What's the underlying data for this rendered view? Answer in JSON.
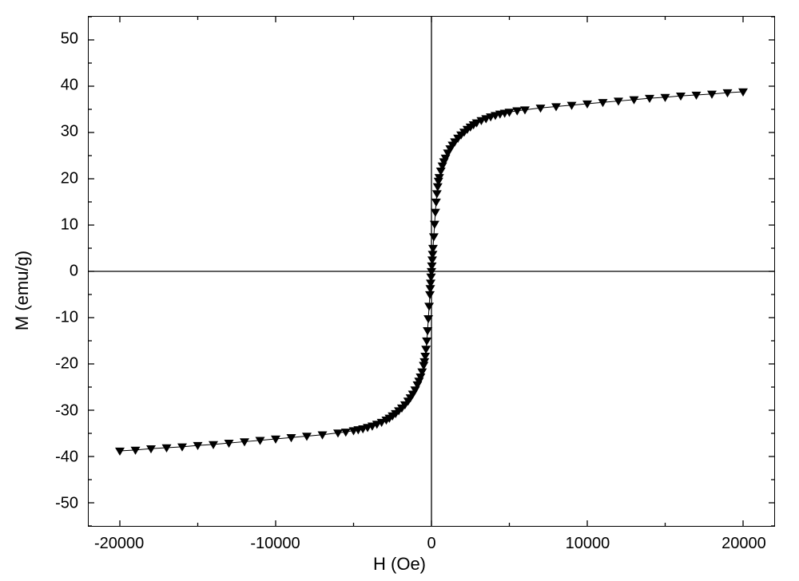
{
  "chart": {
    "type": "scatter-line",
    "xlabel": "H (Oe)",
    "ylabel": "M (emu/g)",
    "xlim": [
      -22000,
      22000
    ],
    "ylim": [
      -55,
      55
    ],
    "xtick_positions": [
      -20000,
      -10000,
      0,
      10000,
      20000
    ],
    "xtick_labels": [
      "-20000",
      "-10000",
      "0",
      "10000",
      "20000"
    ],
    "x_minor_ticks": [
      -15000,
      -5000,
      5000,
      15000
    ],
    "ytick_positions": [
      -50,
      -40,
      -30,
      -20,
      -10,
      0,
      10,
      20,
      30,
      40,
      50
    ],
    "ytick_labels": [
      "-50",
      "-40",
      "-30",
      "-20",
      "-10",
      "0",
      "10",
      "20",
      "30",
      "40",
      "50"
    ],
    "y_minor_ticks": [
      -55,
      -45,
      -35,
      -25,
      -15,
      -5,
      5,
      15,
      25,
      35,
      45,
      55
    ],
    "zero_line_color": "#000000",
    "axis_color": "#000000",
    "background_color": "#ffffff",
    "label_fontsize": 22,
    "tick_fontsize": 20,
    "marker": "triangle-down",
    "marker_size": 6,
    "marker_color": "#000000",
    "line_color": "#000000",
    "line_width": 1,
    "tick_length_major": 7,
    "tick_length_minor": 4,
    "data": [
      [
        -20000,
        -38.8
      ],
      [
        -19000,
        -38.6
      ],
      [
        -18000,
        -38.3
      ],
      [
        -17000,
        -38.1
      ],
      [
        -16000,
        -37.9
      ],
      [
        -15000,
        -37.6
      ],
      [
        -14000,
        -37.4
      ],
      [
        -13000,
        -37.1
      ],
      [
        -12000,
        -36.8
      ],
      [
        -11000,
        -36.5
      ],
      [
        -10000,
        -36.2
      ],
      [
        -9000,
        -35.9
      ],
      [
        -8000,
        -35.6
      ],
      [
        -7000,
        -35.3
      ],
      [
        -6000,
        -34.9
      ],
      [
        -5500,
        -34.7
      ],
      [
        -5000,
        -34.4
      ],
      [
        -4700,
        -34.2
      ],
      [
        -4400,
        -34.0
      ],
      [
        -4100,
        -33.7
      ],
      [
        -3800,
        -33.4
      ],
      [
        -3500,
        -33.0
      ],
      [
        -3200,
        -32.6
      ],
      [
        -2900,
        -32.1
      ],
      [
        -2700,
        -31.7
      ],
      [
        -2500,
        -31.2
      ],
      [
        -2300,
        -30.7
      ],
      [
        -2100,
        -30.1
      ],
      [
        -1900,
        -29.5
      ],
      [
        -1700,
        -28.8
      ],
      [
        -1500,
        -28.0
      ],
      [
        -1350,
        -27.3
      ],
      [
        -1200,
        -26.5
      ],
      [
        -1050,
        -25.6
      ],
      [
        -900,
        -24.5
      ],
      [
        -800,
        -23.7
      ],
      [
        -700,
        -22.8
      ],
      [
        -600,
        -21.7
      ],
      [
        -500,
        -20.3
      ],
      [
        -450,
        -19.5
      ],
      [
        -400,
        -18.3
      ],
      [
        -350,
        -16.8
      ],
      [
        -300,
        -15.0
      ],
      [
        -250,
        -12.8
      ],
      [
        -200,
        -10.2
      ],
      [
        -150,
        -7.5
      ],
      [
        -100,
        -5.0
      ],
      [
        -75,
        -3.7
      ],
      [
        -50,
        -2.5
      ],
      [
        -25,
        -1.2
      ],
      [
        0,
        0
      ],
      [
        25,
        1.2
      ],
      [
        50,
        2.5
      ],
      [
        75,
        3.7
      ],
      [
        100,
        5.0
      ],
      [
        150,
        7.5
      ],
      [
        200,
        10.2
      ],
      [
        250,
        12.8
      ],
      [
        300,
        15.0
      ],
      [
        350,
        16.8
      ],
      [
        400,
        18.3
      ],
      [
        450,
        19.5
      ],
      [
        500,
        20.3
      ],
      [
        600,
        21.7
      ],
      [
        700,
        22.8
      ],
      [
        800,
        23.7
      ],
      [
        900,
        24.5
      ],
      [
        1050,
        25.6
      ],
      [
        1200,
        26.5
      ],
      [
        1350,
        27.3
      ],
      [
        1500,
        28.0
      ],
      [
        1700,
        28.8
      ],
      [
        1900,
        29.5
      ],
      [
        2100,
        30.1
      ],
      [
        2300,
        30.7
      ],
      [
        2500,
        31.2
      ],
      [
        2700,
        31.7
      ],
      [
        2900,
        32.1
      ],
      [
        3200,
        32.6
      ],
      [
        3500,
        33.0
      ],
      [
        3800,
        33.4
      ],
      [
        4100,
        33.7
      ],
      [
        4400,
        34.0
      ],
      [
        4700,
        34.2
      ],
      [
        5000,
        34.4
      ],
      [
        5500,
        34.7
      ],
      [
        6000,
        34.9
      ],
      [
        7000,
        35.3
      ],
      [
        8000,
        35.6
      ],
      [
        9000,
        35.9
      ],
      [
        10000,
        36.2
      ],
      [
        11000,
        36.5
      ],
      [
        12000,
        36.8
      ],
      [
        13000,
        37.1
      ],
      [
        14000,
        37.4
      ],
      [
        15000,
        37.6
      ],
      [
        16000,
        37.9
      ],
      [
        17000,
        38.1
      ],
      [
        18000,
        38.3
      ],
      [
        19000,
        38.6
      ],
      [
        20000,
        38.8
      ]
    ]
  }
}
